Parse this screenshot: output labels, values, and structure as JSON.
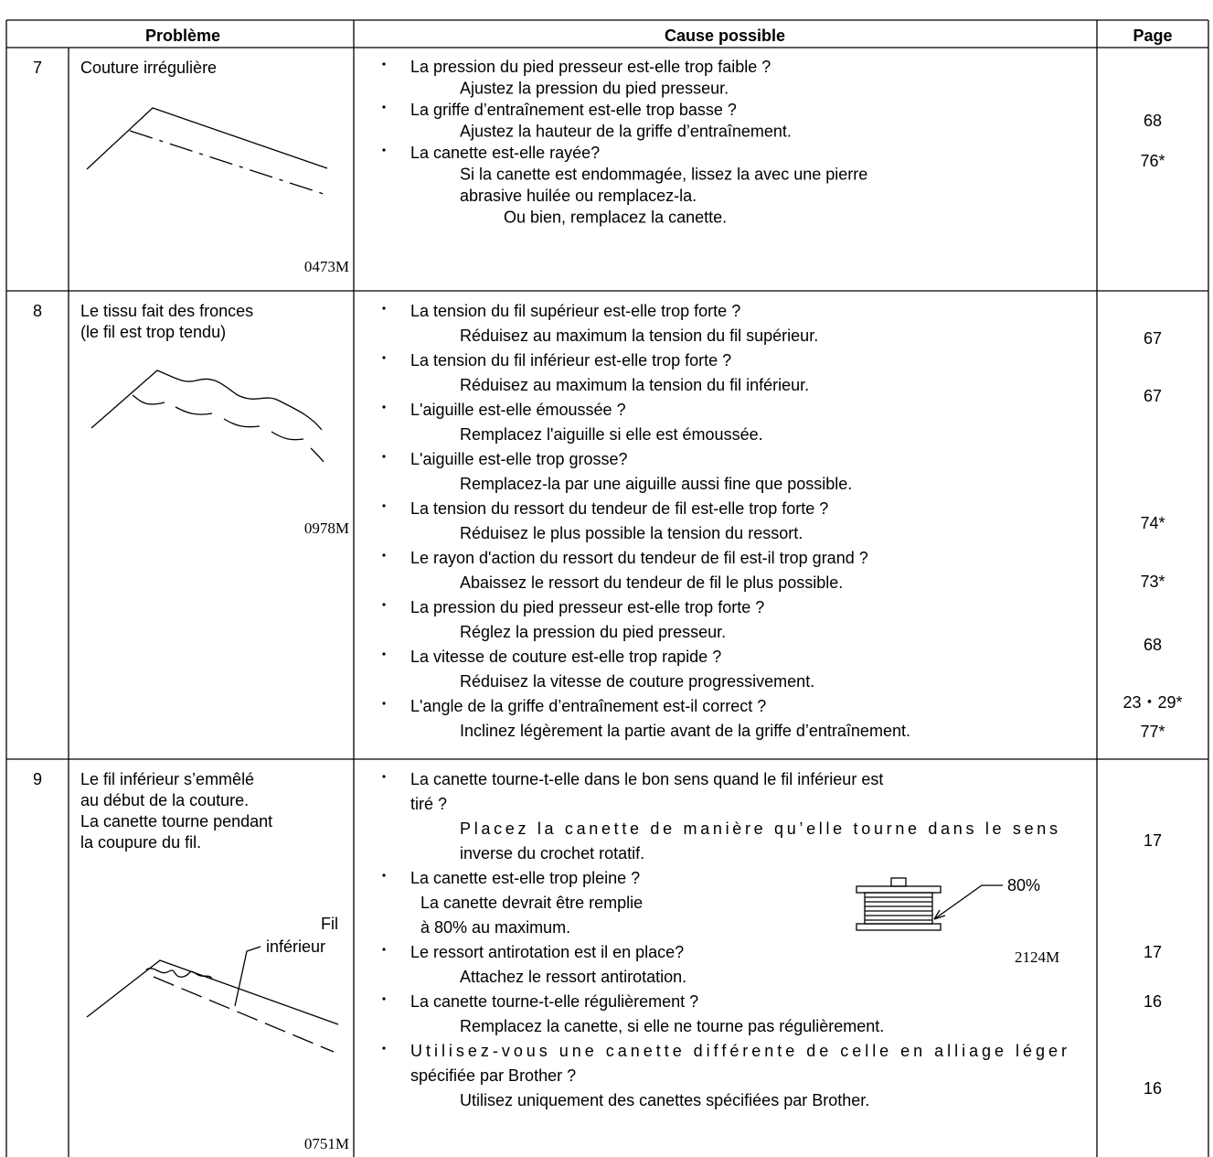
{
  "header": {
    "problem": "Problème",
    "cause": "Cause possible",
    "page": "Page"
  },
  "rows": [
    {
      "number": "7",
      "problem": [
        "Couture irrégulière"
      ],
      "figure_code": "0473M",
      "causes": [
        {
          "question": [
            "La pression du pied presseur est-elle trop faible ?"
          ],
          "remedy": [
            "Ajustez la pression du pied presseur."
          ]
        },
        {
          "question": [
            "La griffe d’entraînement est-elle trop basse ?"
          ],
          "remedy": [
            "Ajustez la hauteur de la griffe d’entraînement."
          ]
        },
        {
          "question": [
            "La canette est-elle rayée?"
          ],
          "remedy": [
            "Si la canette est endommagée, lissez la avec une pierre",
            "abrasive huilée ou remplacez-la.",
            "Ou bien, remplacez la canette."
          ]
        }
      ],
      "pages": [
        "68",
        "76*"
      ]
    },
    {
      "number": "8",
      "problem": [
        "Le tissu fait des fronces",
        "(le fil est trop tendu)"
      ],
      "figure_code": "0978M",
      "causes": [
        {
          "question": [
            "La tension du fil supérieur est-elle trop forte ?"
          ],
          "remedy": [
            "Réduisez au maximum la tension du fil supérieur."
          ]
        },
        {
          "question": [
            "La tension du fil inférieur est-elle trop forte ?"
          ],
          "remedy": [
            "Réduisez au maximum la tension du fil inférieur."
          ]
        },
        {
          "question": [
            "L'aiguille est-elle émoussée ?"
          ],
          "remedy": [
            "Remplacez l'aiguille si elle est émoussée."
          ]
        },
        {
          "question": [
            "L'aiguille est-elle trop grosse?"
          ],
          "remedy": [
            "Remplacez-la par une aiguille aussi fine que possible."
          ]
        },
        {
          "question": [
            "La tension du ressort du tendeur de fil est-elle trop forte ?"
          ],
          "remedy": [
            "Réduisez le plus possible la tension du ressort."
          ]
        },
        {
          "question": [
            "Le rayon d'action du ressort du tendeur de fil est-il trop grand ?"
          ],
          "remedy": [
            "Abaissez le ressort du tendeur de fil le plus possible."
          ]
        },
        {
          "question": [
            "La pression du pied presseur est-elle trop forte ?"
          ],
          "remedy": [
            "Réglez la pression du pied presseur."
          ]
        },
        {
          "question": [
            "La vitesse de couture est-elle trop rapide ?"
          ],
          "remedy": [
            "Réduisez la vitesse de couture progressivement."
          ]
        },
        {
          "question": [
            "L'angle de la griffe d’entraînement est-il correct ?"
          ],
          "remedy": [
            "Inclinez légèrement la partie avant de la griffe d’entraînement."
          ]
        }
      ],
      "pages": [
        "67",
        "67",
        "74*",
        "73*",
        "68",
        "23・29*",
        "77*"
      ]
    },
    {
      "number": "9",
      "problem": [
        "Le fil inférieur s’emmêlé",
        "au début de la couture.",
        "La canette tourne pendant",
        "la coupure du fil."
      ],
      "figure_code": "0751M",
      "figure_labels": [
        "Fil",
        "inférieur"
      ],
      "inset": {
        "label": "80%",
        "code": "2124M"
      },
      "causes": [
        {
          "question": [
            "La canette tourne-t-elle dans le bon sens quand le fil inférieur est",
            "tiré ?"
          ],
          "remedy": [
            "Placez la canette de manière qu’elle tourne dans le sens",
            "inverse du crochet rotatif."
          ]
        },
        {
          "question": [
            "La canette est-elle trop pleine ?"
          ],
          "remedy": [
            "La canette devrait être remplie",
            "à 80% au maximum."
          ]
        },
        {
          "question": [
            "Le ressort antirotation est il en place?"
          ],
          "remedy": [
            "Attachez le ressort antirotation."
          ]
        },
        {
          "question": [
            "La canette tourne-t-elle régulièrement ?"
          ],
          "remedy": [
            "Remplacez la canette, si elle ne tourne pas régulièrement."
          ]
        },
        {
          "question": [
            "Utilisez-vous une canette différente de celle en alliage léger",
            "spécifiée par Brother ?"
          ],
          "remedy": [
            "Utilisez uniquement des canettes spécifiées par Brother."
          ]
        }
      ],
      "pages": [
        "17",
        "17",
        "16",
        "16"
      ]
    }
  ]
}
